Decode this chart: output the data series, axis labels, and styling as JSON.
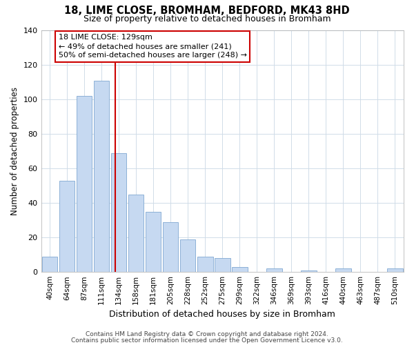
{
  "title": "18, LIME CLOSE, BROMHAM, BEDFORD, MK43 8HD",
  "subtitle": "Size of property relative to detached houses in Bromham",
  "xlabel": "Distribution of detached houses by size in Bromham",
  "ylabel": "Number of detached properties",
  "bar_labels": [
    "40sqm",
    "64sqm",
    "87sqm",
    "111sqm",
    "134sqm",
    "158sqm",
    "181sqm",
    "205sqm",
    "228sqm",
    "252sqm",
    "275sqm",
    "299sqm",
    "322sqm",
    "346sqm",
    "369sqm",
    "393sqm",
    "416sqm",
    "440sqm",
    "463sqm",
    "487sqm",
    "510sqm"
  ],
  "bar_values": [
    9,
    53,
    102,
    111,
    69,
    45,
    35,
    29,
    19,
    9,
    8,
    3,
    0,
    2,
    0,
    1,
    0,
    2,
    0,
    0,
    2
  ],
  "bar_color": "#c6d9f1",
  "bar_edge_color": "#7fa8d1",
  "vline_bar_index": 4,
  "vline_color": "#cc0000",
  "ylim": [
    0,
    140
  ],
  "yticks": [
    0,
    20,
    40,
    60,
    80,
    100,
    120,
    140
  ],
  "annotation_line1": "18 LIME CLOSE: 129sqm",
  "annotation_line2": "← 49% of detached houses are smaller (241)",
  "annotation_line3": "50% of semi-detached houses are larger (248) →",
  "annotation_box_color": "#ffffff",
  "annotation_box_edge_color": "#cc0000",
  "footer_line1": "Contains HM Land Registry data © Crown copyright and database right 2024.",
  "footer_line2": "Contains public sector information licensed under the Open Government Licence v3.0.",
  "background_color": "#ffffff",
  "grid_color": "#d0dce8"
}
